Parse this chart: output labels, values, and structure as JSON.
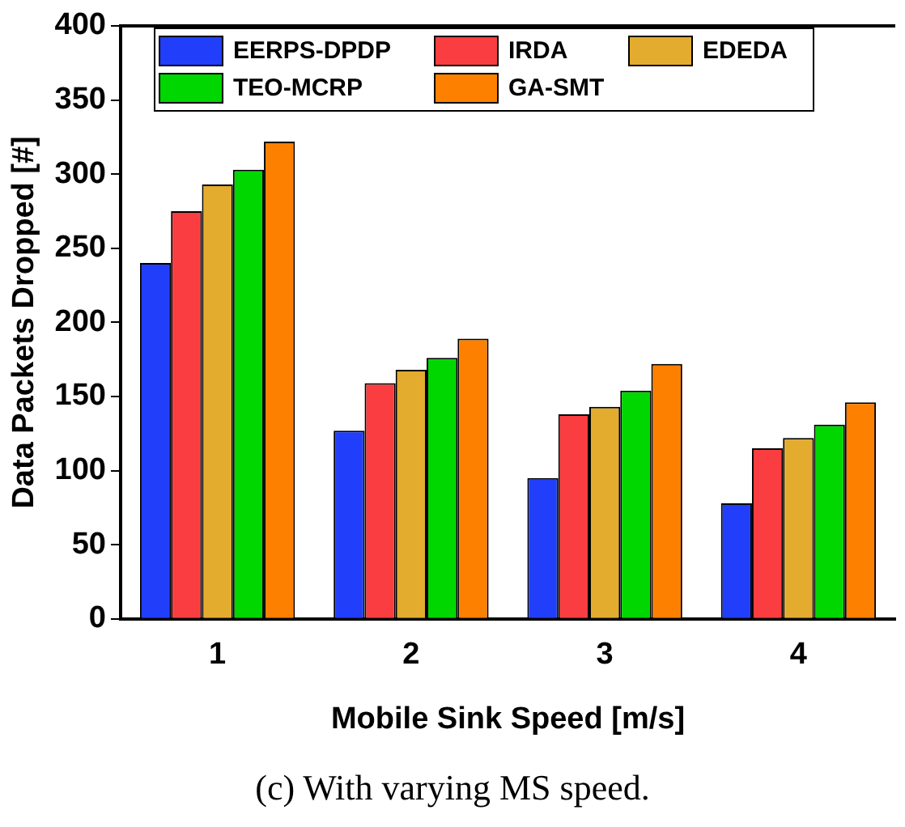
{
  "chart_data": {
    "type": "bar",
    "xlabel": "Mobile Sink Speed [m/s]",
    "ylabel": "Data Packets Dropped [#]",
    "categories": [
      "1",
      "2",
      "3",
      "4"
    ],
    "series": [
      {
        "name": "EERPS-DPDP",
        "color": "#213ffb",
        "values": [
          240,
          127,
          95,
          78
        ]
      },
      {
        "name": "IRDA",
        "color": "#fa3d40",
        "values": [
          275,
          159,
          138,
          115
        ]
      },
      {
        "name": "EDEDA",
        "color": "#e3ac2f",
        "values": [
          293,
          168,
          143,
          122
        ]
      },
      {
        "name": "TEO-MCRP",
        "color": "#00d600",
        "values": [
          303,
          176,
          154,
          131
        ]
      },
      {
        "name": "GA-SMT",
        "color": "#fd8000",
        "values": [
          322,
          189,
          172,
          146
        ]
      }
    ],
    "ylim": [
      0,
      400
    ],
    "yticks": [
      0,
      50,
      100,
      150,
      200,
      250,
      300,
      350,
      400
    ],
    "grid": false,
    "legend": "top left",
    "annotations": [
      "(c) With varying MS speed."
    ]
  }
}
